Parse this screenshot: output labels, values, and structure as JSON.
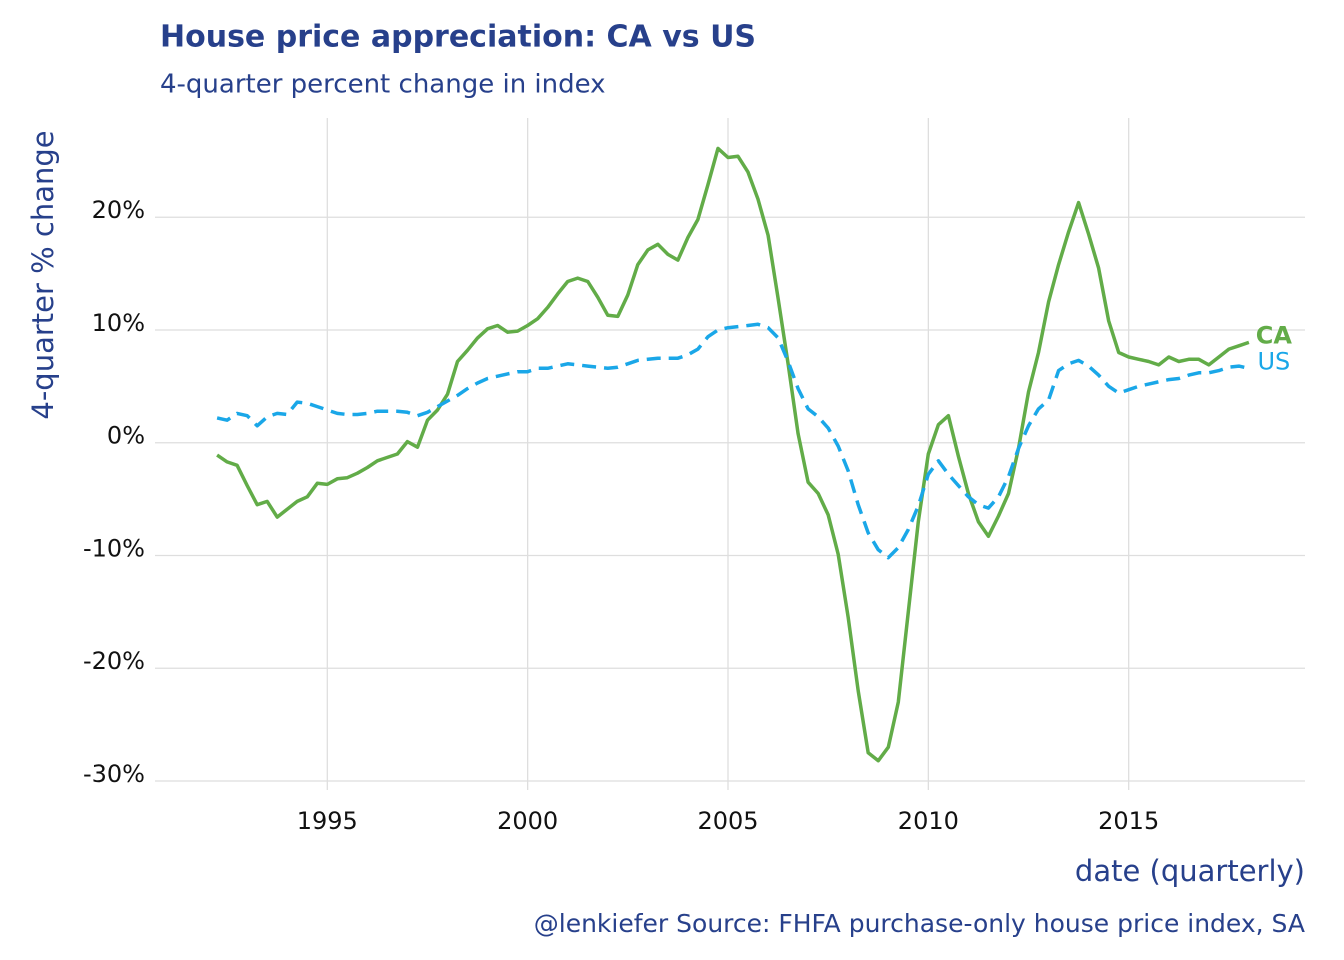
{
  "chart_data": {
    "type": "line",
    "title": "House price appreciation: CA vs US",
    "subtitle": "4-quarter percent change in index",
    "y_label": "4-quarter % change",
    "x_label": "date (quarterly)",
    "caption": "@lenkiefer Source: FHFA purchase-only house price index, SA",
    "x": [
      1992.25,
      1992.5,
      1992.75,
      1993,
      1993.25,
      1993.5,
      1993.75,
      1994,
      1994.25,
      1994.5,
      1994.75,
      1995,
      1995.25,
      1995.5,
      1995.75,
      1996,
      1996.25,
      1996.5,
      1996.75,
      1997,
      1997.25,
      1997.5,
      1997.75,
      1998,
      1998.25,
      1998.5,
      1998.75,
      1999,
      1999.25,
      1999.5,
      1999.75,
      2000,
      2000.25,
      2000.5,
      2000.75,
      2001,
      2001.25,
      2001.5,
      2001.75,
      2002,
      2002.25,
      2002.5,
      2002.75,
      2003,
      2003.25,
      2003.5,
      2003.75,
      2004,
      2004.25,
      2004.5,
      2004.75,
      2005,
      2005.25,
      2005.5,
      2005.75,
      2006,
      2006.25,
      2006.5,
      2006.75,
      2007,
      2007.25,
      2007.5,
      2007.75,
      2008,
      2008.25,
      2008.5,
      2008.75,
      2009,
      2009.25,
      2009.5,
      2009.75,
      2010,
      2010.25,
      2010.5,
      2010.75,
      2011,
      2011.25,
      2011.5,
      2011.75,
      2012,
      2012.25,
      2012.5,
      2012.75,
      2013,
      2013.25,
      2013.5,
      2013.75,
      2014,
      2014.25,
      2014.5,
      2014.75,
      2015,
      2015.25,
      2015.5,
      2015.75,
      2016,
      2016.25,
      2016.5,
      2016.75,
      2017,
      2017.25,
      2017.5,
      2017.75,
      2018
    ],
    "series": [
      {
        "name": "CA",
        "color": "#62ac48",
        "linestyle": "solid",
        "values": [
          -1.1,
          -1.7,
          -2.0,
          -3.8,
          -5.5,
          -5.2,
          -6.6,
          -5.9,
          -5.2,
          -4.8,
          -3.6,
          -3.7,
          -3.2,
          -3.1,
          -2.7,
          -2.2,
          -1.6,
          -1.3,
          -1.0,
          0.1,
          -0.4,
          2.0,
          2.9,
          4.3,
          7.2,
          8.2,
          9.3,
          10.1,
          10.4,
          9.8,
          9.9,
          10.4,
          11.0,
          12.0,
          13.2,
          14.3,
          14.6,
          14.3,
          12.9,
          11.3,
          11.2,
          13.1,
          15.8,
          17.1,
          17.6,
          16.7,
          16.2,
          18.2,
          19.8,
          22.9,
          26.1,
          25.3,
          25.4,
          24.0,
          21.6,
          18.4,
          12.8,
          7.0,
          0.8,
          -3.5,
          -4.5,
          -6.4,
          -9.9,
          -15.5,
          -22.0,
          -27.5,
          -28.2,
          -27.0,
          -23.0,
          -15.0,
          -7.0,
          -1.0,
          1.6,
          2.4,
          -1.2,
          -4.5,
          -7.0,
          -8.3,
          -6.5,
          -4.5,
          -0.5,
          4.5,
          8.0,
          12.5,
          15.8,
          18.7,
          21.3,
          18.5,
          15.5,
          10.8,
          8.0,
          7.6,
          7.4,
          7.2,
          6.9,
          7.6,
          7.2,
          7.4,
          7.4,
          6.9,
          7.6,
          8.3,
          8.6,
          8.9
        ]
      },
      {
        "name": "US",
        "color": "#1aa7e8",
        "linestyle": "dashed",
        "values": [
          2.2,
          2.0,
          2.6,
          2.4,
          1.5,
          2.3,
          2.6,
          2.5,
          3.6,
          3.5,
          3.2,
          2.9,
          2.6,
          2.5,
          2.5,
          2.6,
          2.8,
          2.8,
          2.8,
          2.7,
          2.4,
          2.7,
          3.2,
          3.7,
          4.2,
          4.8,
          5.3,
          5.7,
          5.9,
          6.1,
          6.3,
          6.3,
          6.6,
          6.6,
          6.8,
          7.0,
          6.9,
          6.8,
          6.7,
          6.6,
          6.7,
          7.0,
          7.3,
          7.4,
          7.5,
          7.5,
          7.5,
          7.8,
          8.3,
          9.4,
          10.0,
          10.2,
          10.3,
          10.4,
          10.5,
          10.2,
          9.3,
          7.2,
          4.8,
          3.0,
          2.3,
          1.3,
          -0.3,
          -2.5,
          -5.5,
          -8.0,
          -9.5,
          -10.2,
          -9.3,
          -7.7,
          -5.6,
          -2.8,
          -1.6,
          -2.8,
          -3.8,
          -4.8,
          -5.5,
          -5.8,
          -4.8,
          -3.0,
          -0.5,
          1.5,
          3.0,
          3.8,
          6.4,
          7.0,
          7.3,
          6.8,
          6.0,
          5.0,
          4.4,
          4.7,
          5.0,
          5.2,
          5.4,
          5.6,
          5.7,
          6.0,
          6.2,
          6.2,
          6.4,
          6.7,
          6.8,
          6.6
        ]
      }
    ],
    "xlim": [
      1990.7,
      2019.4
    ],
    "xticks": [
      1995,
      2000,
      2005,
      2010,
      2015
    ],
    "ylim": [
      -30.8,
      28.8
    ],
    "yticks": [
      {
        "value": -30,
        "label": "-30%"
      },
      {
        "value": -20,
        "label": "-20%"
      },
      {
        "value": -10,
        "label": "-10%"
      },
      {
        "value": 0,
        "label": "0%"
      },
      {
        "value": 10,
        "label": "10%"
      },
      {
        "value": 20,
        "label": "20%"
      }
    ],
    "grid": true
  }
}
